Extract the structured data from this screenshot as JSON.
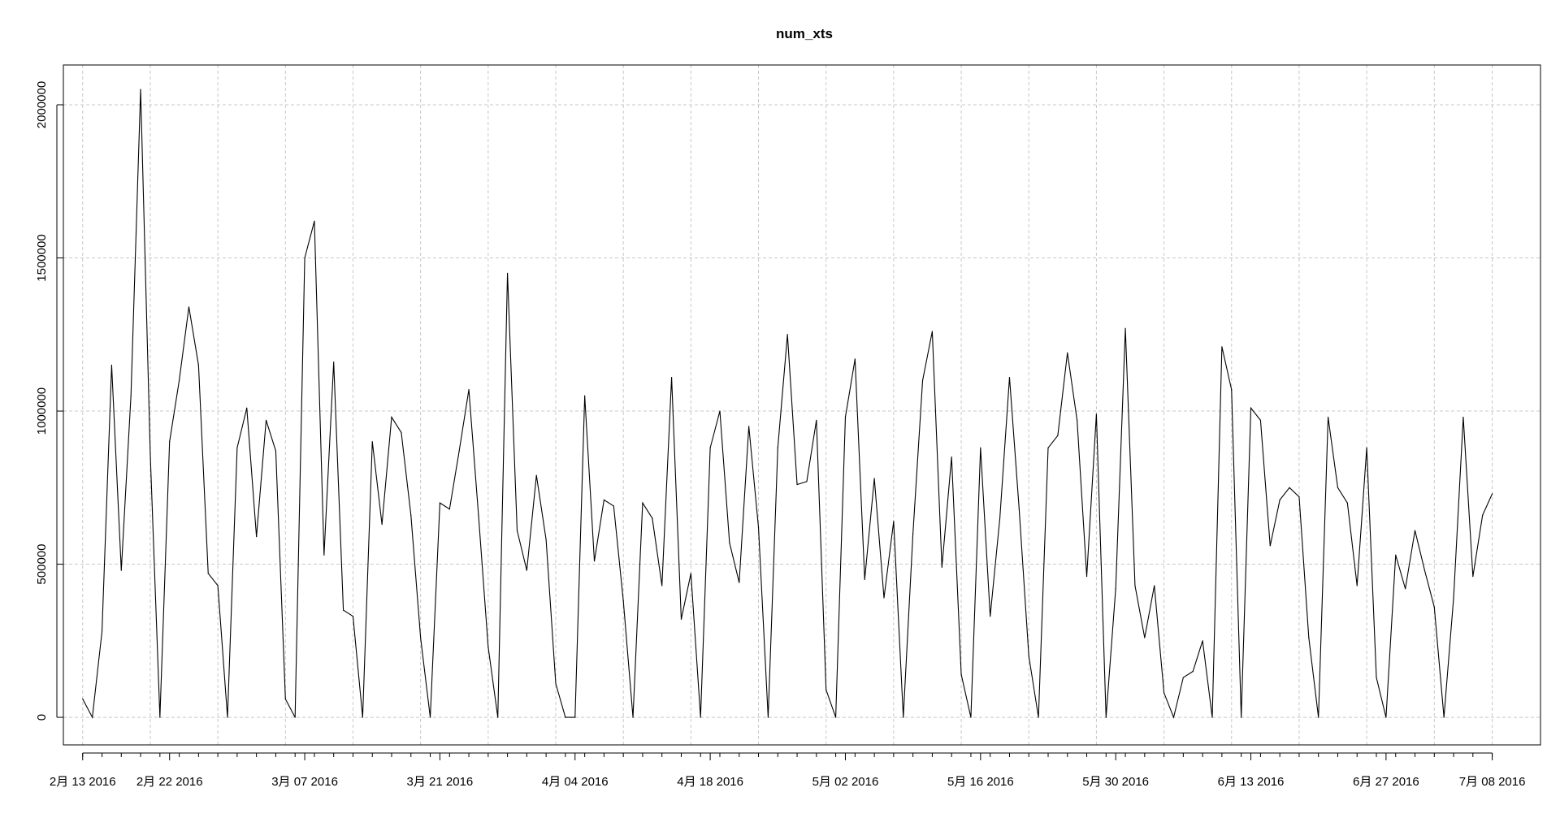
{
  "chart_data": {
    "type": "line",
    "title": "num_xts",
    "xlabel": "",
    "ylabel": "",
    "grid": true,
    "legend": "none",
    "x_start": "2016-02-13",
    "x_end": "2016-07-08",
    "xlim": [
      "2016-02-11",
      "2016-07-13"
    ],
    "ylim": [
      -90000,
      2130000
    ],
    "x_ticks": [
      {
        "date": "2016-02-13",
        "label": "2月 13 2016"
      },
      {
        "date": "2016-02-22",
        "label": "2月 22 2016"
      },
      {
        "date": "2016-03-07",
        "label": "3月 07 2016"
      },
      {
        "date": "2016-03-21",
        "label": "3月 21 2016"
      },
      {
        "date": "2016-04-04",
        "label": "4月 04 2016"
      },
      {
        "date": "2016-04-18",
        "label": "4月 18 2016"
      },
      {
        "date": "2016-05-02",
        "label": "5月 02 2016"
      },
      {
        "date": "2016-05-16",
        "label": "5月 16 2016"
      },
      {
        "date": "2016-05-30",
        "label": "5月 30 2016"
      },
      {
        "date": "2016-06-13",
        "label": "6月 13 2016"
      },
      {
        "date": "2016-06-27",
        "label": "6月 27 2016"
      },
      {
        "date": "2016-07-08",
        "label": "7月 08 2016"
      }
    ],
    "y_ticks": [
      {
        "value": 0,
        "label": "0"
      },
      {
        "value": 500000,
        "label": "500000"
      },
      {
        "value": 1000000,
        "label": "1000000"
      },
      {
        "value": 1500000,
        "label": "1500000"
      },
      {
        "value": 2000000,
        "label": "2000000"
      }
    ],
    "series": [
      {
        "values": [
          60000,
          0,
          280000,
          1150000,
          480000,
          1050000,
          2050000,
          860000,
          0,
          900000,
          1100000,
          1340000,
          1150000,
          470000,
          430000,
          0,
          880000,
          1010000,
          590000,
          970000,
          870000,
          60000,
          0,
          1500000,
          1620000,
          530000,
          1160000,
          350000,
          330000,
          0,
          900000,
          630000,
          980000,
          930000,
          660000,
          260000,
          0,
          700000,
          680000,
          870000,
          1070000,
          660000,
          230000,
          0,
          1450000,
          610000,
          480000,
          790000,
          580000,
          110000,
          0,
          0,
          1050000,
          510000,
          710000,
          690000,
          380000,
          0,
          700000,
          650000,
          430000,
          1110000,
          320000,
          470000,
          0,
          880000,
          1000000,
          570000,
          440000,
          950000,
          620000,
          0,
          880000,
          1250000,
          760000,
          770000,
          970000,
          90000,
          0,
          980000,
          1170000,
          450000,
          780000,
          390000,
          640000,
          0,
          600000,
          1100000,
          1260000,
          490000,
          850000,
          140000,
          0,
          880000,
          330000,
          650000,
          1110000,
          680000,
          200000,
          0,
          880000,
          920000,
          1190000,
          970000,
          460000,
          990000,
          0,
          420000,
          1270000,
          430000,
          260000,
          430000,
          80000,
          0,
          130000,
          150000,
          250000,
          0,
          1210000,
          1070000,
          0,
          1010000,
          970000,
          560000,
          710000,
          750000,
          720000,
          260000,
          0,
          980000,
          750000,
          700000,
          430000,
          880000,
          130000,
          0,
          530000,
          420000,
          610000,
          480000,
          360000,
          0,
          390000,
          980000,
          460000,
          660000,
          730000
        ]
      }
    ]
  }
}
